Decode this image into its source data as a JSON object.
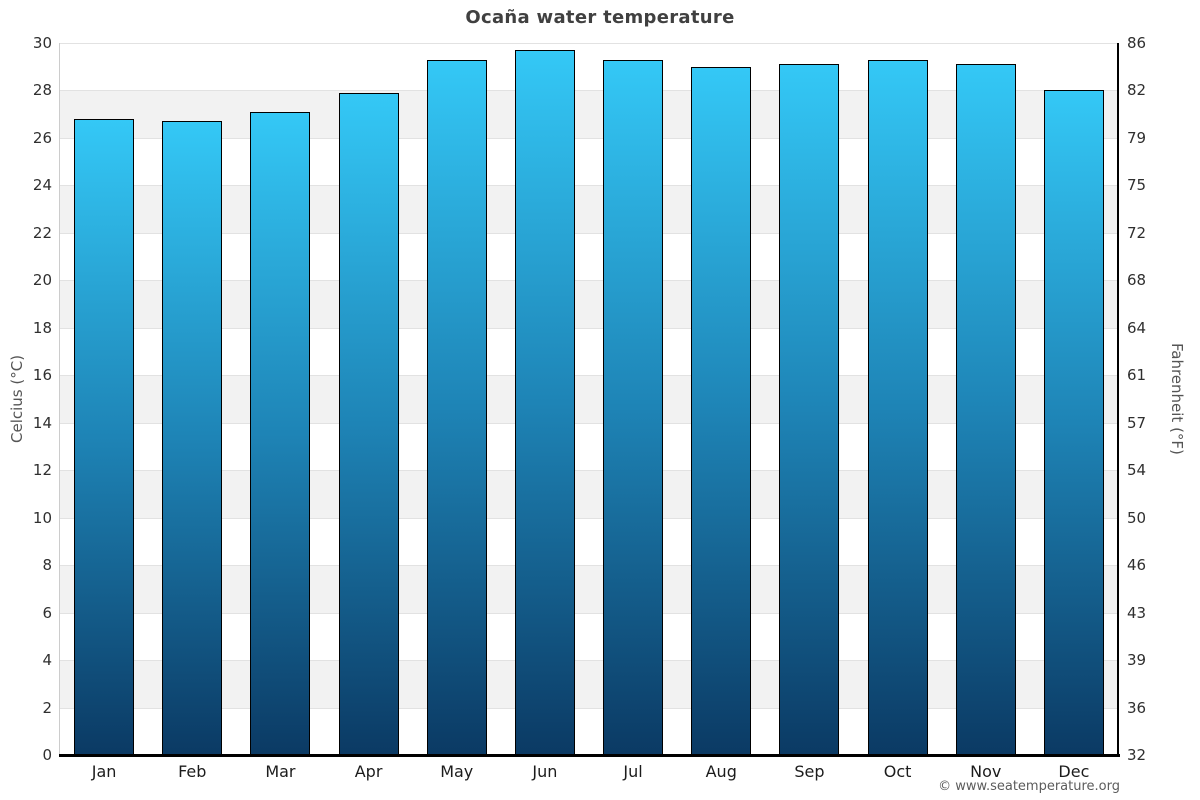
{
  "page": {
    "title": "Ocaña water temperature",
    "footer": "© www.seatemperature.org"
  },
  "colors": {
    "bar_gradient_top": "#34c8f6",
    "bar_gradient_mid": "#1e84b6",
    "bar_gradient_bottom": "#0b3a64",
    "bar_border": "#000000",
    "stripe_band": "#f2f2f2",
    "gridline": "#e2e2e2",
    "left_spine": "#cccccc",
    "right_bottom_spine": "#000000",
    "title_text": "#404040",
    "tick_text": "#2f2f2f",
    "month_text": "#1c1c1c",
    "axis_label_text": "#555555",
    "footer_text": "#5c5c5c"
  },
  "chart_data": {
    "type": "bar",
    "title": "Ocaña water temperature",
    "categories": [
      "Jan",
      "Feb",
      "Mar",
      "Apr",
      "May",
      "Jun",
      "Jul",
      "Aug",
      "Sep",
      "Oct",
      "Nov",
      "Dec"
    ],
    "values": [
      26.8,
      26.7,
      27.1,
      27.9,
      29.3,
      29.7,
      29.3,
      29.0,
      29.1,
      29.3,
      29.1,
      28.0
    ],
    "series_name": "Water temperature (°C)",
    "xlabel": "",
    "ylabel_left": "Celcius (°C)",
    "ylabel_right": "Fahrenheit (°F)",
    "ylim_c": [
      0,
      30
    ],
    "yticks_celsius": [
      30,
      28,
      26,
      24,
      22,
      20,
      18,
      16,
      14,
      12,
      10,
      8,
      6,
      4,
      2,
      0
    ],
    "yticks_fahrenheit": [
      86,
      82,
      79,
      75,
      72,
      68,
      64,
      61,
      57,
      54,
      50,
      46,
      43,
      39,
      36,
      32
    ],
    "grid": "horizontal gridlines every 2°C with alternating white and light-gray bands",
    "legend": "none",
    "bar_style": "vertical gradient cyan to dark navy, black outline"
  }
}
